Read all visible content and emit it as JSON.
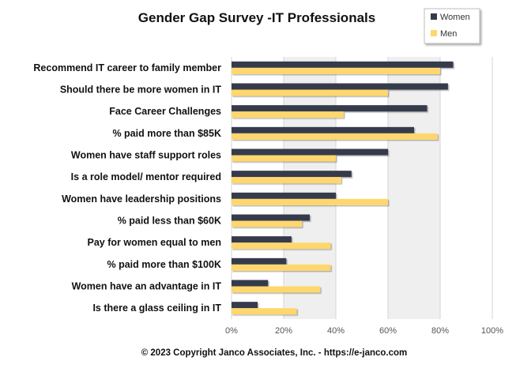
{
  "chart_data": {
    "type": "bar",
    "orientation": "horizontal",
    "title": "Gender Gap Survey -IT Professionals",
    "categories": [
      "Recommend IT career to family member",
      "Should there be more women in IT",
      "Face Career Challenges",
      "% paid more than $85K",
      "Women have staff support roles",
      "Is a role model/ mentor required",
      "Women have leadership positions",
      "% paid less than $60K",
      "Pay for women equal to men",
      "% paid more than $100K",
      "Women have an advantage in IT",
      "Is there a glass ceiling in IT"
    ],
    "series": [
      {
        "name": "Women",
        "color": "#363B4B",
        "values": [
          85,
          83,
          75,
          70,
          60,
          46,
          40,
          30,
          23,
          21,
          14,
          10
        ]
      },
      {
        "name": "Men",
        "color": "#FFD76E",
        "values": [
          80,
          60,
          43,
          79,
          40,
          42,
          60,
          27,
          38,
          38,
          34,
          25
        ]
      }
    ],
    "xlim": [
      0,
      100
    ],
    "x_ticks": [
      "0%",
      "20%",
      "40%",
      "60%",
      "80%",
      "100%"
    ],
    "xlabel": "",
    "ylabel": "",
    "grid": "vertical bands",
    "legend_position": "top-right"
  },
  "footer": "© 2023 Copyright Janco Associates, Inc. - https://e-janco.com"
}
